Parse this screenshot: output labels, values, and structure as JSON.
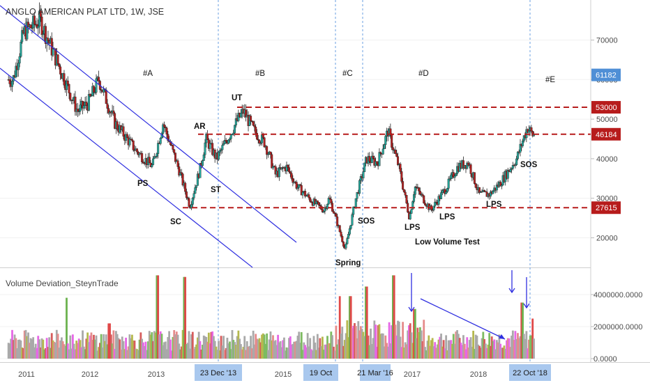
{
  "chart_title": "ANGLO AMERICAN PLAT LTD, 1W, JSE",
  "indicator_title": "Volume Deviation_SteynTrade",
  "colors": {
    "up": "#26a69a",
    "down": "#b22222",
    "level": "#b71c1c",
    "channel": "#2f2fe0",
    "price_tag": "#4f8fd6",
    "date_tag": "#a9c8ee"
  },
  "chart_data": [
    {
      "type": "candlestick",
      "title": "ANGLO AMERICAN PLAT LTD, 1W, JSE",
      "ylim": [
        11000,
        81000
      ],
      "y_ticks": [
        20000,
        30000,
        40000,
        50000,
        60000,
        70000
      ],
      "y_tick_labels": [
        "20000",
        "30000",
        "40000",
        "50000",
        "60000",
        "70000"
      ],
      "x_ticks": [
        "2011",
        "2012",
        "2013",
        "2015",
        "2017",
        "2018"
      ],
      "highlighted_dates": [
        "23 Dec '13",
        "19 Oct",
        "21 Mar '16",
        "22 Oct '18"
      ],
      "price_tags": [
        61182,
        53000,
        46184,
        27615
      ],
      "support_resistance_levels": [
        53000,
        46184,
        27615
      ],
      "approx_close_series": [
        [
          "2010-10",
          60000
        ],
        [
          "2010-12",
          72000
        ],
        [
          "2011-03",
          75000
        ],
        [
          "2011-07",
          62000
        ],
        [
          "2011-10",
          52000
        ],
        [
          "2011-12",
          54000
        ],
        [
          "2012-02",
          60000
        ],
        [
          "2012-05",
          49000
        ],
        [
          "2012-09",
          42000
        ],
        [
          "2012-12",
          38000
        ],
        [
          "2013-02",
          49000
        ],
        [
          "2013-04",
          41000
        ],
        [
          "2013-05",
          37000
        ],
        [
          "2013-07",
          28000
        ],
        [
          "2013-09",
          38000
        ],
        [
          "2013-10",
          45000
        ],
        [
          "2013-12",
          40000
        ],
        [
          "2014-02",
          45000
        ],
        [
          "2014-04",
          50000
        ],
        [
          "2014-05",
          52000
        ],
        [
          "2014-07",
          47000
        ],
        [
          "2014-09",
          44000
        ],
        [
          "2014-11",
          36000
        ],
        [
          "2015-01",
          38000
        ],
        [
          "2015-03",
          33000
        ],
        [
          "2015-06",
          29000
        ],
        [
          "2015-08",
          27000
        ],
        [
          "2015-09",
          30000
        ],
        [
          "2015-10",
          26000
        ],
        [
          "2015-12",
          17000
        ],
        [
          "2016-02",
          30000
        ],
        [
          "2016-04",
          40000
        ],
        [
          "2016-06",
          39000
        ],
        [
          "2016-08",
          47000
        ],
        [
          "2016-10",
          38000
        ],
        [
          "2016-12",
          25000
        ],
        [
          "2017-01",
          33000
        ],
        [
          "2017-04",
          27000
        ],
        [
          "2017-07",
          33000
        ],
        [
          "2017-09",
          38000
        ],
        [
          "2017-11",
          39000
        ],
        [
          "2018-01",
          31000
        ],
        [
          "2018-03",
          31000
        ],
        [
          "2018-05",
          34000
        ],
        [
          "2018-08",
          40000
        ],
        [
          "2018-10",
          48000
        ],
        [
          "2018-11",
          46000
        ]
      ],
      "annotations": [
        "PS",
        "SC",
        "AR",
        "ST",
        "UT",
        "Spring",
        "SOS",
        "LPS",
        "LPS",
        "LPS",
        "SOS",
        "Low Volume Test"
      ],
      "phase_labels": [
        "#A",
        "#B",
        "#C",
        "#D",
        "#E"
      ]
    },
    {
      "type": "bar",
      "title": "Volume Deviation_SteynTrade",
      "ylim": [
        0,
        5200000
      ],
      "y_ticks": [
        0,
        2000000,
        4000000
      ],
      "y_tick_labels": [
        "0.0000",
        "2000000.0000",
        "4000000.0000"
      ],
      "approx_spikes": [
        [
          "2011-08",
          3800000
        ],
        [
          "2012-04",
          2200000
        ],
        [
          "2013-01",
          5200000
        ],
        [
          "2013-06",
          5100000
        ],
        [
          "2015-11",
          3900000
        ],
        [
          "2016-01",
          3900000
        ],
        [
          "2016-04",
          4500000
        ],
        [
          "2016-09",
          5200000
        ],
        [
          "2017-01",
          3100000
        ],
        [
          "2018-09",
          3500000
        ],
        [
          "2018-11",
          2500000
        ]
      ]
    }
  ]
}
